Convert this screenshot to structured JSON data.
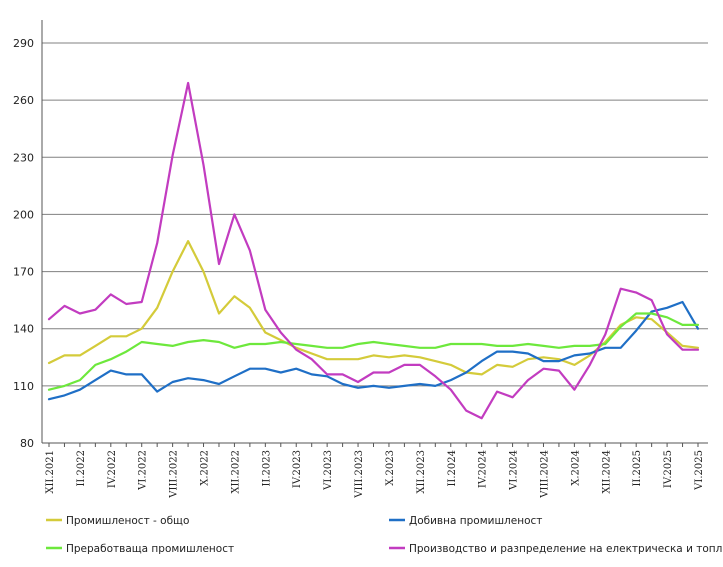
{
  "chart_data": {
    "type": "line",
    "title": "",
    "xlabel": "",
    "ylabel": "",
    "ylim": [
      80,
      290
    ],
    "yticks": [
      80,
      110,
      140,
      170,
      200,
      230,
      260,
      290
    ],
    "categories": [
      "XII.2021",
      "I.2022",
      "II.2022",
      "III.2022",
      "IV.2022",
      "V.2022",
      "VI.2022",
      "VII.2022",
      "VIII.2022",
      "IX.2022",
      "X.2022",
      "XI.2022",
      "XII.2022",
      "I.2023",
      "II.2023",
      "III.2023",
      "IV.2023",
      "V.2023",
      "VI.2023",
      "VII.2023",
      "VIII.2023",
      "IX.2023",
      "X.2023",
      "XI.2023",
      "XII.2023",
      "I.2024",
      "II.2024",
      "III.2024",
      "IV.2024",
      "V.2024",
      "VI.2024",
      "VII.2024",
      "VIII.2024",
      "IX.2024",
      "X.2024",
      "XI.2024",
      "XII.2024",
      "I.2025",
      "II.2025",
      "III.2025",
      "IV.2025",
      "V.2025",
      "VI.2025"
    ],
    "xtick_labels": [
      "XII.2021",
      "II.2022",
      "IV.2022",
      "VI.2022",
      "VIII.2022",
      "X.2022",
      "XII.2022",
      "II.2023",
      "IV.2023",
      "VI.2023",
      "VIII.2023",
      "X.2023",
      "XII.2023",
      "II.2024",
      "IV.2024",
      "VI.2024",
      "VIII.2024",
      "X.2024",
      "XII.2024",
      "II.2025",
      "IV.2025",
      "VI.2025"
    ],
    "series": [
      {
        "name": "Промишленост - общо",
        "color": "#d4cb3a",
        "values": [
          122,
          126,
          126,
          131,
          136,
          136,
          140,
          151,
          170,
          186,
          170,
          148,
          157,
          151,
          138,
          134,
          130,
          127,
          124,
          124,
          124,
          126,
          125,
          126,
          125,
          123,
          121,
          117,
          116,
          121,
          120,
          124,
          125,
          124,
          121,
          126,
          133,
          142,
          146,
          145,
          138,
          131,
          130
        ]
      },
      {
        "name": "Добивна промишленост",
        "color": "#1f6fc6",
        "values": [
          103,
          105,
          108,
          113,
          118,
          116,
          116,
          107,
          112,
          114,
          113,
          111,
          115,
          119,
          119,
          117,
          119,
          116,
          115,
          111,
          109,
          110,
          109,
          110,
          111,
          110,
          113,
          117,
          123,
          128,
          128,
          127,
          123,
          123,
          126,
          127,
          130,
          130,
          139,
          149,
          151,
          154,
          140
        ]
      },
      {
        "name": "Преработваща промишленост",
        "color": "#6de83c",
        "values": [
          108,
          110,
          113,
          121,
          124,
          128,
          133,
          132,
          131,
          133,
          134,
          133,
          130,
          132,
          132,
          133,
          132,
          131,
          130,
          130,
          132,
          133,
          132,
          131,
          130,
          130,
          132,
          132,
          132,
          131,
          131,
          132,
          131,
          130,
          131,
          131,
          132,
          141,
          148,
          148,
          146,
          142,
          142
        ]
      },
      {
        "name": "Производство и разпределение на електрическа и топлоенергия и газ",
        "color": "#c23cc0",
        "values": [
          145,
          152,
          148,
          150,
          158,
          153,
          154,
          185,
          231,
          269,
          226,
          174,
          200,
          181,
          150,
          138,
          129,
          124,
          116,
          116,
          112,
          117,
          117,
          121,
          121,
          115,
          108,
          97,
          93,
          107,
          104,
          113,
          119,
          118,
          108,
          121,
          137,
          161,
          159,
          155,
          137,
          129,
          129
        ]
      }
    ],
    "legend": {
      "position": "bottom",
      "items": [
        {
          "label": "Промишленост - общо",
          "color": "#d4cb3a"
        },
        {
          "label": "Добивна промишленост",
          "color": "#1f6fc6"
        },
        {
          "label": "Преработваща промишленост",
          "color": "#6de83c"
        },
        {
          "label": "Производство и разпределение на електрическа и топлоенергия и газ",
          "color": "#c23cc0"
        }
      ]
    },
    "grid": "horizontal",
    "grid_color": "#808080"
  }
}
